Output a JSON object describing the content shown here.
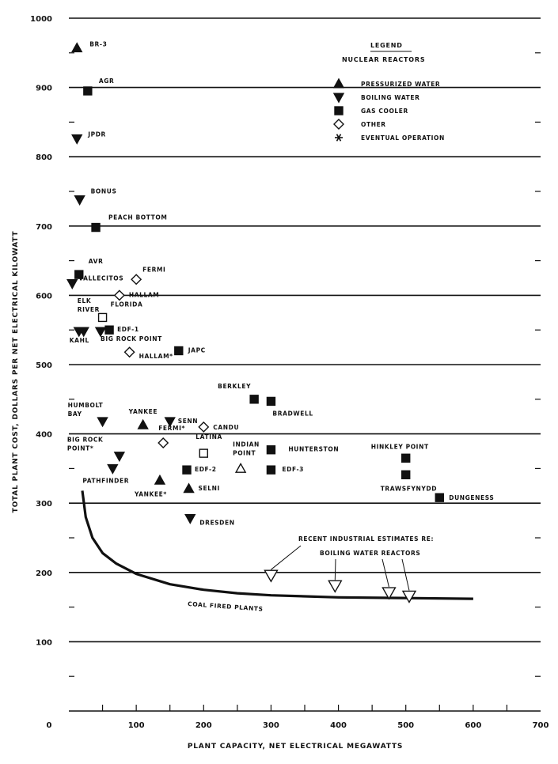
{
  "chart_data": {
    "type": "scatter",
    "xlabel": "PLANT CAPACITY, NET ELECTRICAL MEGAWATTS",
    "ylabel": "TOTAL PLANT COST, DOLLARS PER NET ELECTRICAL KILOWATT",
    "xlim": [
      0,
      700
    ],
    "ylim": [
      0,
      1000
    ],
    "x_ticks": [
      "0",
      "100",
      "200",
      "300",
      "400",
      "500",
      "600",
      "700"
    ],
    "y_ticks": [
      "100",
      "200",
      "300",
      "400",
      "500",
      "600",
      "700",
      "800",
      "900",
      "1000"
    ],
    "grid": "horizontal",
    "legend": {
      "title": "LEGEND",
      "subtitle": "NUCLEAR REACTORS",
      "placement": "top-right",
      "items": [
        {
          "marker": "triangle-up",
          "label": "PRESSURIZED WATER"
        },
        {
          "marker": "triangle-down",
          "label": "BOILING WATER"
        },
        {
          "marker": "square",
          "label": "GAS COOLER"
        },
        {
          "marker": "diamond",
          "label": "OTHER"
        },
        {
          "marker": "asterisk",
          "label": "EVENTUAL OPERATION"
        }
      ]
    },
    "points": [
      {
        "label": "BR-3",
        "x": 12,
        "y": 957,
        "marker": "triangle-up",
        "filled": true
      },
      {
        "label": "AGR",
        "x": 28,
        "y": 895,
        "marker": "square",
        "filled": true
      },
      {
        "label": "JPDR",
        "x": 12,
        "y": 826,
        "marker": "triangle-down",
        "filled": true
      },
      {
        "label": "BONUS",
        "x": 16,
        "y": 738,
        "marker": "triangle-down",
        "filled": true
      },
      {
        "label": "PEACH BOTTOM",
        "x": 40,
        "y": 698,
        "marker": "square",
        "filled": true
      },
      {
        "label": "AVR",
        "x": 15,
        "y": 630,
        "marker": "square",
        "filled": true
      },
      {
        "label": "VALLECITOS",
        "x": 5,
        "y": 617,
        "marker": "triangle-down",
        "filled": true
      },
      {
        "label": "FERMI",
        "x": 100,
        "y": 623,
        "marker": "diamond",
        "filled": false
      },
      {
        "label": "HALLAM",
        "x": 75,
        "y": 600,
        "marker": "diamond",
        "filled": false
      },
      {
        "label": "FLORIDA",
        "x": 50,
        "y": 568,
        "marker": "square",
        "filled": false
      },
      {
        "label": "ELK RIVER",
        "x": 22,
        "y": 548,
        "marker": "triangle-down",
        "filled": true
      },
      {
        "label": "KAHL",
        "x": 15,
        "y": 548,
        "marker": "triangle-down",
        "filled": true
      },
      {
        "label": "EDF-1",
        "x": 60,
        "y": 550,
        "marker": "square",
        "filled": true
      },
      {
        "label": "BIG ROCK POINT",
        "x": 47,
        "y": 548,
        "marker": "triangle-down",
        "filled": true
      },
      {
        "label": "HALLAM*",
        "x": 90,
        "y": 518,
        "marker": "diamond",
        "filled": false
      },
      {
        "label": "JAPC",
        "x": 163,
        "y": 520,
        "marker": "square",
        "filled": true
      },
      {
        "label": "BERKLEY",
        "x": 275,
        "y": 450,
        "marker": "square",
        "filled": true
      },
      {
        "label": "BRADWELL",
        "x": 300,
        "y": 447,
        "marker": "square",
        "filled": true
      },
      {
        "label": "HUMBOLT BAY",
        "x": 50,
        "y": 418,
        "marker": "triangle-down",
        "filled": true
      },
      {
        "label": "YANKEE",
        "x": 110,
        "y": 413,
        "marker": "triangle-up",
        "filled": true
      },
      {
        "label": "SENN",
        "x": 150,
        "y": 418,
        "marker": "triangle-down",
        "filled": true
      },
      {
        "label": "CANDU",
        "x": 200,
        "y": 410,
        "marker": "diamond",
        "filled": false
      },
      {
        "label": "FERMI*",
        "x": 140,
        "y": 387,
        "marker": "diamond",
        "filled": false
      },
      {
        "label": "LATINA",
        "x": 200,
        "y": 372,
        "marker": "square",
        "filled": false
      },
      {
        "label": "BIG ROCK POINT*",
        "x": 75,
        "y": 368,
        "marker": "triangle-down",
        "filled": true
      },
      {
        "label": "INDIAN POINT",
        "x": 255,
        "y": 350,
        "marker": "triangle-up",
        "filled": false
      },
      {
        "label": "HUNTERSTON",
        "x": 300,
        "y": 377,
        "marker": "square",
        "filled": true
      },
      {
        "label": "EDF-2",
        "x": 175,
        "y": 348,
        "marker": "square",
        "filled": true
      },
      {
        "label": "EDF-3",
        "x": 300,
        "y": 348,
        "marker": "square",
        "filled": true
      },
      {
        "label": "HINKLEY POINT",
        "x": 500,
        "y": 365,
        "marker": "square",
        "filled": true
      },
      {
        "label": "TRAWSFYNYDD",
        "x": 500,
        "y": 341,
        "marker": "square",
        "filled": true
      },
      {
        "label": "DUNGENESS",
        "x": 550,
        "y": 308,
        "marker": "square",
        "filled": true
      },
      {
        "label": "PATHFINDER",
        "x": 65,
        "y": 350,
        "marker": "triangle-down",
        "filled": true
      },
      {
        "label": "YANKEE*",
        "x": 135,
        "y": 333,
        "marker": "triangle-up",
        "filled": true
      },
      {
        "label": "SELNI",
        "x": 178,
        "y": 321,
        "marker": "triangle-up",
        "filled": true
      },
      {
        "label": "DRESDEN",
        "x": 180,
        "y": 278,
        "marker": "triangle-down",
        "filled": true
      }
    ],
    "estimates": {
      "label": "RECENT INDUSTRIAL ESTIMATES RE:",
      "label2": "BOILING WATER REACTORS",
      "points": [
        {
          "x": 300,
          "y": 195
        },
        {
          "x": 395,
          "y": 180
        },
        {
          "x": 475,
          "y": 170
        },
        {
          "x": 505,
          "y": 165
        }
      ]
    },
    "coal_curve": {
      "label": "COAL FIRED PLANTS",
      "x": [
        20,
        25,
        35,
        50,
        70,
        100,
        150,
        200,
        250,
        300,
        400,
        500,
        600
      ],
      "y": [
        318,
        280,
        250,
        228,
        213,
        198,
        183,
        175,
        170,
        167,
        164,
        163,
        162
      ]
    }
  }
}
